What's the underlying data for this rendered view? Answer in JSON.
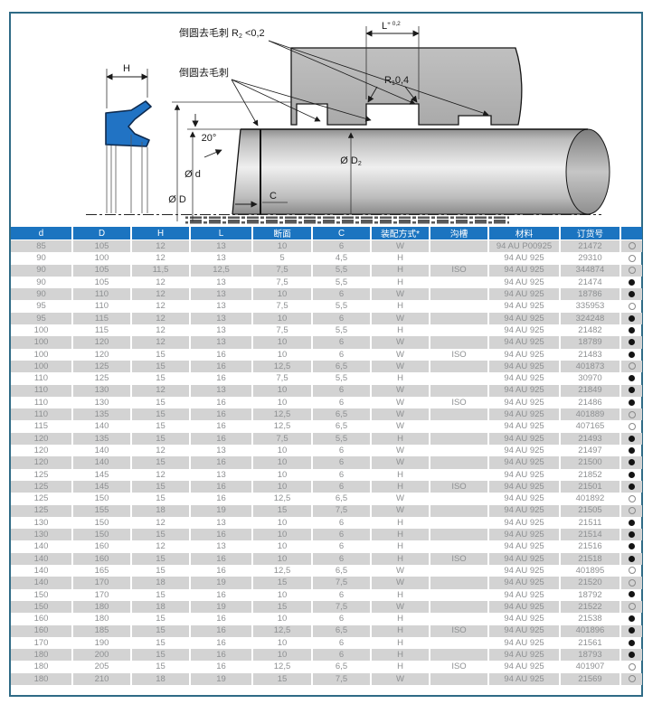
{
  "page": {
    "frame_color": "#2f6b86",
    "background": "#ffffff"
  },
  "drawing": {
    "seal_color": "#2173c4",
    "labels": {
      "deburr_top_prefix": "倒圆去毛刺 R",
      "deburr_top_sub": "2",
      "deburr_top_suffix": " <0,2",
      "deburr": "倒圆去毛刺",
      "h_dim": "H",
      "angle": "20°",
      "dia_d_small": "Ø d",
      "dia_d_big": "Ø D",
      "dia_d2_prefix": "Ø D",
      "dia_d2_sub": "2",
      "c_dim": "C",
      "l_base": "L",
      "l_tol": "+ 0,2",
      "r1_prefix": "R",
      "r1_sub": "1",
      "r1_suffix": "0,4"
    }
  },
  "table": {
    "header_bg": "#1b74c0",
    "row_alt_bg": "#d3d3d3",
    "text_color": "#8e9092",
    "columns": [
      "d",
      "D",
      "H",
      "L",
      "断面",
      "C",
      "装配方式*",
      "沟槽",
      "材料",
      "订货号",
      ""
    ],
    "rows": [
      [
        "85",
        "105",
        "12",
        "13",
        "10",
        "6",
        "W",
        "",
        "94 AU P00925",
        "21472",
        "hollow"
      ],
      [
        "90",
        "100",
        "12",
        "13",
        "5",
        "4,5",
        "H",
        "",
        "94 AU 925",
        "29310",
        "hollow"
      ],
      [
        "90",
        "105",
        "11,5",
        "12,5",
        "7,5",
        "5,5",
        "H",
        "ISO",
        "94 AU 925",
        "344874",
        "hollow"
      ],
      [
        "90",
        "105",
        "12",
        "13",
        "7,5",
        "5,5",
        "H",
        "",
        "94 AU 925",
        "21474",
        "filled"
      ],
      [
        "90",
        "110",
        "12",
        "13",
        "10",
        "6",
        "W",
        "",
        "94 AU 925",
        "18786",
        "filled"
      ],
      [
        "95",
        "110",
        "12",
        "13",
        "7,5",
        "5,5",
        "H",
        "",
        "94 AU 925",
        "335953",
        "hollow"
      ],
      [
        "95",
        "115",
        "12",
        "13",
        "10",
        "6",
        "W",
        "",
        "94 AU 925",
        "324248",
        "filled"
      ],
      [
        "100",
        "115",
        "12",
        "13",
        "7,5",
        "5,5",
        "H",
        "",
        "94 AU 925",
        "21482",
        "filled"
      ],
      [
        "100",
        "120",
        "12",
        "13",
        "10",
        "6",
        "W",
        "",
        "94 AU 925",
        "18789",
        "filled"
      ],
      [
        "100",
        "120",
        "15",
        "16",
        "10",
        "6",
        "W",
        "ISO",
        "94 AU 925",
        "21483",
        "filled"
      ],
      [
        "100",
        "125",
        "15",
        "16",
        "12,5",
        "6,5",
        "W",
        "",
        "94 AU 925",
        "401873",
        "hollow"
      ],
      [
        "110",
        "125",
        "15",
        "16",
        "7,5",
        "5,5",
        "H",
        "",
        "94 AU 925",
        "30970",
        "filled"
      ],
      [
        "110",
        "130",
        "12",
        "13",
        "10",
        "6",
        "W",
        "",
        "94 AU 925",
        "21849",
        "filled"
      ],
      [
        "110",
        "130",
        "15",
        "16",
        "10",
        "6",
        "W",
        "ISO",
        "94 AU 925",
        "21486",
        "filled"
      ],
      [
        "110",
        "135",
        "15",
        "16",
        "12,5",
        "6,5",
        "W",
        "",
        "94 AU 925",
        "401889",
        "hollow"
      ],
      [
        "115",
        "140",
        "15",
        "16",
        "12,5",
        "6,5",
        "W",
        "",
        "94 AU 925",
        "407165",
        "hollow"
      ],
      [
        "120",
        "135",
        "15",
        "16",
        "7,5",
        "5,5",
        "H",
        "",
        "94 AU 925",
        "21493",
        "filled"
      ],
      [
        "120",
        "140",
        "12",
        "13",
        "10",
        "6",
        "W",
        "",
        "94 AU 925",
        "21497",
        "filled"
      ],
      [
        "120",
        "140",
        "15",
        "16",
        "10",
        "6",
        "W",
        "",
        "94 AU 925",
        "21500",
        "filled"
      ],
      [
        "125",
        "145",
        "12",
        "13",
        "10",
        "6",
        "H",
        "",
        "94 AU 925",
        "21852",
        "filled"
      ],
      [
        "125",
        "145",
        "15",
        "16",
        "10",
        "6",
        "H",
        "ISO",
        "94 AU 925",
        "21501",
        "filled"
      ],
      [
        "125",
        "150",
        "15",
        "16",
        "12,5",
        "6,5",
        "W",
        "",
        "94 AU 925",
        "401892",
        "hollow"
      ],
      [
        "125",
        "155",
        "18",
        "19",
        "15",
        "7,5",
        "W",
        "",
        "94 AU 925",
        "21505",
        "hollow"
      ],
      [
        "130",
        "150",
        "12",
        "13",
        "10",
        "6",
        "H",
        "",
        "94 AU 925",
        "21511",
        "filled"
      ],
      [
        "130",
        "150",
        "15",
        "16",
        "10",
        "6",
        "H",
        "",
        "94 AU 925",
        "21514",
        "filled"
      ],
      [
        "140",
        "160",
        "12",
        "13",
        "10",
        "6",
        "H",
        "",
        "94 AU 925",
        "21516",
        "filled"
      ],
      [
        "140",
        "160",
        "15",
        "16",
        "10",
        "6",
        "H",
        "ISO",
        "94 AU 925",
        "21518",
        "filled"
      ],
      [
        "140",
        "165",
        "15",
        "16",
        "12,5",
        "6,5",
        "W",
        "",
        "94 AU 925",
        "401895",
        "hollow"
      ],
      [
        "140",
        "170",
        "18",
        "19",
        "15",
        "7,5",
        "W",
        "",
        "94 AU 925",
        "21520",
        "hollow"
      ],
      [
        "150",
        "170",
        "15",
        "16",
        "10",
        "6",
        "H",
        "",
        "94 AU 925",
        "18792",
        "filled"
      ],
      [
        "150",
        "180",
        "18",
        "19",
        "15",
        "7,5",
        "W",
        "",
        "94 AU 925",
        "21522",
        "hollow"
      ],
      [
        "160",
        "180",
        "15",
        "16",
        "10",
        "6",
        "H",
        "",
        "94 AU 925",
        "21538",
        "filled"
      ],
      [
        "160",
        "185",
        "15",
        "16",
        "12,5",
        "6,5",
        "H",
        "ISO",
        "94 AU 925",
        "401896",
        "filled"
      ],
      [
        "170",
        "190",
        "15",
        "16",
        "10",
        "6",
        "H",
        "",
        "94 AU 925",
        "21561",
        "filled"
      ],
      [
        "180",
        "200",
        "15",
        "16",
        "10",
        "6",
        "H",
        "",
        "94 AU 925",
        "18793",
        "filled"
      ],
      [
        "180",
        "205",
        "15",
        "16",
        "12,5",
        "6,5",
        "H",
        "ISO",
        "94 AU 925",
        "401907",
        "hollow"
      ],
      [
        "180",
        "210",
        "18",
        "19",
        "15",
        "7,5",
        "W",
        "",
        "94 AU 925",
        "21569",
        "hollow"
      ]
    ]
  }
}
